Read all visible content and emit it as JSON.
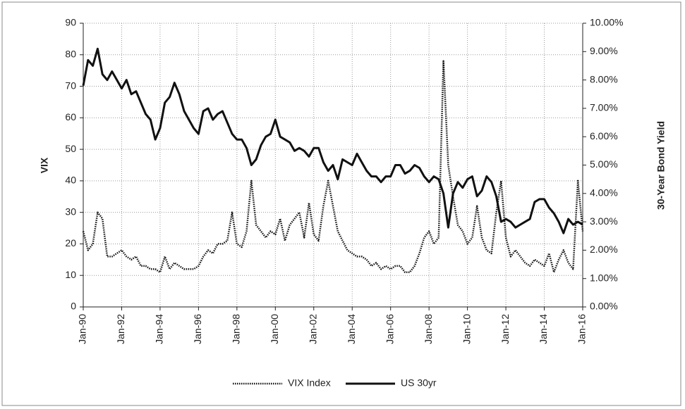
{
  "chart_data": {
    "type": "line",
    "ylabel": "VIX",
    "y2label": "30-Year  Bond Yield",
    "categories": [
      "Jan-90",
      null,
      null,
      null,
      null,
      null,
      null,
      null,
      "Jan-92",
      null,
      null,
      null,
      null,
      null,
      null,
      null,
      "Jan-94",
      null,
      null,
      null,
      null,
      null,
      null,
      null,
      "Jan-96",
      null,
      null,
      null,
      null,
      null,
      null,
      null,
      "Jan-98",
      null,
      null,
      null,
      null,
      null,
      null,
      null,
      "Jan-00",
      null,
      null,
      null,
      null,
      null,
      null,
      null,
      "Jan-02",
      null,
      null,
      null,
      null,
      null,
      null,
      null,
      "Jan-04",
      null,
      null,
      null,
      null,
      null,
      null,
      null,
      "Jan-06",
      null,
      null,
      null,
      null,
      null,
      null,
      null,
      "Jan-08",
      null,
      null,
      null,
      null,
      null,
      null,
      null,
      "Jan-10",
      null,
      null,
      null,
      null,
      null,
      null,
      null,
      "Jan-12",
      null,
      null,
      null,
      null,
      null,
      null,
      null,
      "Jan-14",
      null,
      null,
      null,
      null,
      null,
      null,
      null,
      "Jan-16"
    ],
    "series": [
      {
        "name": "VIX Index",
        "color": "#111",
        "dash": true,
        "values": [
          24,
          18,
          20,
          30,
          28,
          16,
          16,
          17,
          18,
          16,
          15,
          16,
          13,
          13,
          12,
          12,
          11,
          16,
          12,
          14,
          13,
          12,
          12,
          12,
          13,
          16,
          18,
          17,
          20,
          20,
          21,
          30,
          20,
          19,
          24,
          40,
          26,
          24,
          22,
          24,
          23,
          28,
          21,
          26,
          28,
          30,
          22,
          33,
          23,
          21,
          32,
          40,
          32,
          24,
          21,
          18,
          17,
          16,
          16,
          15,
          13,
          14,
          12,
          13,
          12,
          13,
          13,
          11,
          11,
          13,
          17,
          22,
          24,
          20,
          22,
          78,
          45,
          35,
          26,
          24,
          20,
          22,
          32,
          22,
          18,
          17,
          30,
          40,
          22,
          16,
          18,
          16,
          14,
          13,
          15,
          14,
          13,
          17,
          11,
          15,
          18,
          14,
          12,
          40,
          24
        ]
      },
      {
        "name": "US 30yr",
        "color": "#111",
        "dash": false,
        "axis": "y2",
        "values": [
          7.8,
          8.7,
          8.5,
          9.1,
          8.2,
          8.0,
          8.3,
          8.0,
          7.7,
          8.0,
          7.5,
          7.6,
          7.2,
          6.8,
          6.6,
          5.9,
          6.3,
          7.2,
          7.4,
          7.9,
          7.5,
          6.9,
          6.6,
          6.3,
          6.1,
          6.9,
          7.0,
          6.6,
          6.8,
          6.9,
          6.5,
          6.1,
          5.9,
          5.9,
          5.6,
          5.0,
          5.2,
          5.7,
          6.0,
          6.1,
          6.6,
          6.0,
          5.9,
          5.8,
          5.5,
          5.6,
          5.5,
          5.3,
          5.6,
          5.6,
          5.1,
          4.8,
          5.0,
          4.5,
          5.2,
          5.1,
          5.0,
          5.4,
          5.1,
          4.8,
          4.6,
          4.6,
          4.4,
          4.6,
          4.6,
          5.0,
          5.0,
          4.7,
          4.8,
          5.0,
          4.9,
          4.6,
          4.4,
          4.6,
          4.5,
          4.0,
          2.8,
          4.0,
          4.4,
          4.2,
          4.5,
          4.6,
          3.9,
          4.1,
          4.6,
          4.4,
          3.9,
          3.0,
          3.1,
          3.0,
          2.8,
          2.9,
          3.0,
          3.1,
          3.7,
          3.8,
          3.8,
          3.5,
          3.3,
          3.0,
          2.6,
          3.1,
          2.9,
          3.0,
          2.9
        ]
      }
    ],
    "ylim": [
      0,
      90
    ],
    "yticks": [
      0,
      10,
      20,
      30,
      40,
      50,
      60,
      70,
      80,
      90
    ],
    "y2lim": [
      0,
      10
    ],
    "y2ticks": [
      {
        "value": 0,
        "label": "0.00%"
      },
      {
        "value": 1,
        "label": "1.00%"
      },
      {
        "value": 2,
        "label": "2.00%"
      },
      {
        "value": 3,
        "label": "3.00%"
      },
      {
        "value": 4,
        "label": "4.00%"
      },
      {
        "value": 5,
        "label": "5.00%"
      },
      {
        "value": 6,
        "label": "6.00%"
      },
      {
        "value": 7,
        "label": "7.00%"
      },
      {
        "value": 8,
        "label": "8.00%"
      },
      {
        "value": 9,
        "label": "9.00%"
      },
      {
        "value": 10,
        "label": "10.00%"
      }
    ],
    "grid": true,
    "legend": "bottom"
  }
}
